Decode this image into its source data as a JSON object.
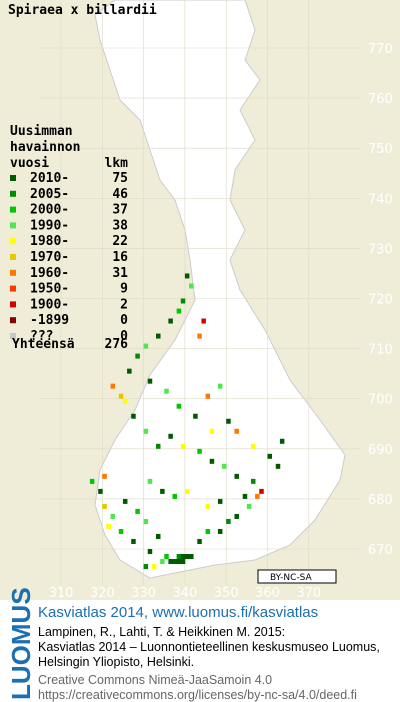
{
  "title": "Spiraea x billardii",
  "legend": {
    "header": [
      "Uusimman",
      "havainnon",
      "vuosi"
    ],
    "count_header": "lkm",
    "entries": [
      {
        "label": "2010-",
        "count": 75,
        "color": "#005a00"
      },
      {
        "label": "2005-",
        "count": 46,
        "color": "#008c00"
      },
      {
        "label": "2000-",
        "count": 37,
        "color": "#00c800"
      },
      {
        "label": "1990-",
        "count": 38,
        "color": "#50e650"
      },
      {
        "label": "1980-",
        "count": 22,
        "color": "#ffff00"
      },
      {
        "label": "1970-",
        "count": 16,
        "color": "#e6c800"
      },
      {
        "label": "1960-",
        "count": 31,
        "color": "#ff7800"
      },
      {
        "label": "1950-",
        "count": 9,
        "color": "#ff3c00"
      },
      {
        "label": "1900-",
        "count": 2,
        "color": "#d20000"
      },
      {
        "label": "-1899",
        "count": 0,
        "color": "#820000"
      },
      {
        "label": "???",
        "count": 0,
        "color": "#c8c8c8"
      }
    ],
    "total_label": "Yhteensä",
    "total": 276
  },
  "northing_ticks": [
    770,
    760,
    750,
    740,
    730,
    720,
    710,
    700,
    690,
    680,
    670
  ],
  "easting_ticks": [
    310,
    320,
    330,
    340,
    350,
    360,
    370
  ],
  "cells": [
    [
      336,
      667,
      0
    ],
    [
      337,
      667,
      0
    ],
    [
      338,
      667,
      0
    ],
    [
      339,
      667,
      0
    ],
    [
      340,
      668,
      0
    ],
    [
      341,
      668,
      0
    ],
    [
      338,
      668,
      1
    ],
    [
      339,
      668,
      0
    ],
    [
      335,
      668,
      2
    ],
    [
      334,
      667,
      3
    ],
    [
      332,
      666,
      4
    ],
    [
      330,
      666,
      1
    ],
    [
      331,
      669,
      0
    ],
    [
      327,
      671,
      0
    ],
    [
      324,
      673,
      2
    ],
    [
      321,
      674,
      4
    ],
    [
      322,
      676,
      3
    ],
    [
      320,
      678,
      5
    ],
    [
      319,
      681,
      0
    ],
    [
      317,
      683,
      2
    ],
    [
      320,
      684,
      6
    ],
    [
      325,
      679,
      0
    ],
    [
      328,
      677,
      2
    ],
    [
      330,
      675,
      3
    ],
    [
      333,
      672,
      0
    ],
    [
      343,
      671,
      0
    ],
    [
      345,
      673,
      2
    ],
    [
      348,
      673,
      0
    ],
    [
      350,
      675,
      1
    ],
    [
      352,
      676,
      0
    ],
    [
      355,
      678,
      3
    ],
    [
      354,
      680,
      0
    ],
    [
      357,
      680,
      6
    ],
    [
      358,
      681,
      8
    ],
    [
      356,
      683,
      1
    ],
    [
      352,
      684,
      0
    ],
    [
      349,
      686,
      3
    ],
    [
      346,
      687,
      0
    ],
    [
      343,
      689,
      2
    ],
    [
      339,
      690,
      4
    ],
    [
      336,
      692,
      0
    ],
    [
      333,
      690,
      1
    ],
    [
      330,
      693,
      3
    ],
    [
      327,
      696,
      0
    ],
    [
      325,
      699,
      4
    ],
    [
      324,
      700,
      5
    ],
    [
      322,
      702,
      6
    ],
    [
      326,
      705,
      0
    ],
    [
      328,
      708,
      1
    ],
    [
      330,
      710,
      3
    ],
    [
      333,
      712,
      0
    ],
    [
      336,
      715,
      0
    ],
    [
      338,
      717,
      2
    ],
    [
      339,
      719,
      1
    ],
    [
      341,
      722,
      3
    ],
    [
      340,
      724,
      0
    ],
    [
      344,
      715,
      8
    ],
    [
      343,
      712,
      6
    ],
    [
      345,
      700,
      6
    ],
    [
      348,
      702,
      3
    ],
    [
      350,
      695,
      0
    ],
    [
      352,
      693,
      6
    ],
    [
      356,
      690,
      4
    ],
    [
      360,
      688,
      0
    ],
    [
      362,
      686,
      0
    ],
    [
      363,
      691,
      0
    ],
    [
      346,
      693,
      4
    ],
    [
      342,
      696,
      0
    ],
    [
      338,
      698,
      2
    ],
    [
      335,
      701,
      3
    ],
    [
      331,
      703,
      0
    ],
    [
      340,
      681,
      4
    ],
    [
      337,
      680,
      2
    ],
    [
      334,
      681,
      0
    ],
    [
      331,
      683,
      3
    ],
    [
      345,
      678,
      4
    ],
    [
      348,
      679,
      0
    ]
  ],
  "badge": "BY-NC-SA",
  "footer": {
    "vertical": "LUOMUS",
    "link": "Kasviatlas 2014, www.luomus.fi/kasviatlas",
    "citation": [
      "Lampinen, R., Lahti, T. & Heikkinen M. 2015:",
      "Kasviatlas 2014 – Luonnontieteellinen keskusmuseo Luomus,",
      "Helsingin Yliopisto, Helsinki."
    ],
    "license": [
      "Creative Commons Nimeä-JaaSamoin 4.0",
      "https://creativecommons.org/licenses/by-nc-sa/4.0/deed.fi"
    ]
  }
}
